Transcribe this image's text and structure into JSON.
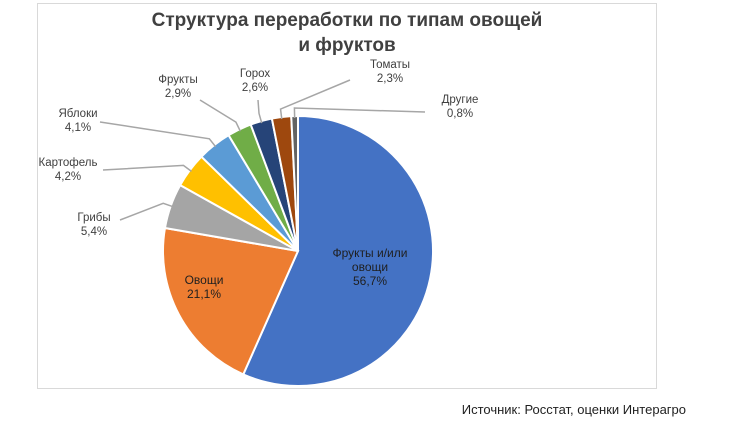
{
  "chart_data": {
    "type": "pie",
    "title": "Структура переработки по типам овощей и фруктов",
    "slices": [
      {
        "label": [
          "Фрукты и/или",
          "овощи"
        ],
        "value_text": "56,7%",
        "value": 56.7,
        "color": "#4472c4"
      },
      {
        "label": [
          "Овощи"
        ],
        "value_text": "21,1%",
        "value": 21.1,
        "color": "#ed7d31"
      },
      {
        "label": [
          "Грибы"
        ],
        "value_text": "5,4%",
        "value": 5.4,
        "color": "#a5a5a5"
      },
      {
        "label": [
          "Картофель"
        ],
        "value_text": "4,2%",
        "value": 4.2,
        "color": "#ffc000"
      },
      {
        "label": [
          "Яблоки"
        ],
        "value_text": "4,1%",
        "value": 4.1,
        "color": "#5b9bd5"
      },
      {
        "label": [
          "Фрукты"
        ],
        "value_text": "2,9%",
        "value": 2.9,
        "color": "#70ad47"
      },
      {
        "label": [
          "Горох"
        ],
        "value_text": "2,6%",
        "value": 2.6,
        "color": "#264478"
      },
      {
        "label": [
          "Томаты"
        ],
        "value_text": "2,3%",
        "value": 2.3,
        "color": "#9e480e"
      },
      {
        "label": [
          "Другие"
        ],
        "value_text": "0,8%",
        "value": 0.8,
        "color": "#636363"
      }
    ]
  },
  "source": "Источник: Росстат, оценки Интерагро"
}
